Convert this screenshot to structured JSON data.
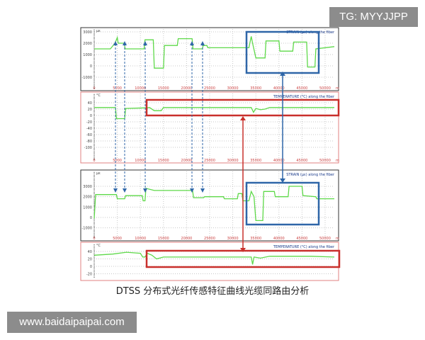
{
  "watermark_top": "TG: MYYJJPP",
  "watermark_bottom": "www.baidaipaipai.com",
  "caption": "DTSS 分布式光纤传感特征曲线光缆同路由分析",
  "colors": {
    "series": "#5fd94a",
    "strain_highlight": "#2f66a8",
    "temp_highlight": "#c9302c",
    "grid": "#c8c8c8"
  },
  "chart_data": [
    {
      "type": "line",
      "title": "STRAIN (µε) along the fiber",
      "ylabel": "µε",
      "xlabel": "m",
      "xlim": [
        0,
        52000
      ],
      "ylim": [
        -1300,
        3300
      ],
      "yticks": [
        3000,
        2000,
        1000,
        0,
        -1000
      ],
      "xticks": [
        0,
        5000,
        10000,
        15000,
        20000,
        25000,
        30000,
        35000,
        40000,
        45000,
        50000
      ],
      "grid": true,
      "x": [
        0,
        3500,
        4500,
        5000,
        5200,
        6500,
        6700,
        10800,
        11000,
        12800,
        13000,
        15000,
        15200,
        18000,
        18200,
        21200,
        21400,
        23400,
        23600,
        24400,
        24600,
        33500,
        34000,
        34300,
        35000,
        37000,
        37200,
        40000,
        40200,
        43000,
        43200,
        46000,
        46200,
        47800,
        48000,
        52000
      ],
      "y": [
        1500,
        1500,
        2000,
        2500,
        2000,
        2000,
        1500,
        1500,
        2300,
        2300,
        -200,
        -200,
        1800,
        1800,
        2400,
        2400,
        1500,
        1500,
        1800,
        1800,
        1600,
        1600,
        2600,
        2000,
        700,
        700,
        2200,
        2200,
        1300,
        1300,
        2100,
        2100,
        -100,
        -100,
        1500,
        1700
      ]
    },
    {
      "type": "line",
      "title": "TEMPERATURE (°C) along the fiber",
      "ylabel": "°C",
      "xlabel": "m",
      "xlim": [
        0,
        52000
      ],
      "ylim": [
        -105,
        50
      ],
      "yticks": [
        40,
        20,
        0,
        -20,
        -40,
        -60,
        -80,
        -100
      ],
      "xticks": [
        0,
        5000,
        10000,
        15000,
        20000,
        25000,
        30000,
        35000,
        40000,
        45000,
        50000
      ],
      "grid": true,
      "x": [
        0,
        4600,
        4800,
        6600,
        6800,
        11500,
        12000,
        13000,
        14500,
        15000,
        34000,
        34500,
        35000,
        36000,
        37000,
        38000,
        52000
      ],
      "y": [
        25,
        25,
        -10,
        -10,
        22,
        24,
        25,
        15,
        15,
        25,
        25,
        10,
        22,
        18,
        20,
        25,
        25
      ]
    },
    {
      "type": "line",
      "title": "STRAIN (µε) along the fiber",
      "ylabel": "µε",
      "xlabel": "m",
      "xlim": [
        0,
        52000
      ],
      "ylim": [
        -1300,
        3300
      ],
      "yticks": [
        3000,
        2000,
        1000,
        0,
        -1000
      ],
      "xticks": [
        0,
        5000,
        10000,
        15000,
        20000,
        25000,
        30000,
        35000,
        40000,
        45000,
        50000
      ],
      "grid": true,
      "x": [
        0,
        300,
        4800,
        5000,
        6600,
        6800,
        10400,
        10600,
        11000,
        11200,
        13000,
        21300,
        21500,
        23700,
        23900,
        28000,
        28200,
        31000,
        31200,
        32000,
        32200,
        33500,
        34000,
        34600,
        35000,
        36500,
        36700,
        39000,
        39200,
        42000,
        42200,
        45000,
        45200,
        48000,
        48200,
        52000
      ],
      "y": [
        -100,
        2200,
        2200,
        1800,
        1800,
        2100,
        2100,
        1600,
        1600,
        2800,
        2600,
        2600,
        1900,
        1900,
        2000,
        2000,
        1800,
        1800,
        2300,
        2300,
        1600,
        1600,
        2500,
        2000,
        -300,
        -300,
        2500,
        2500,
        2000,
        2000,
        3000,
        3000,
        2100,
        2000,
        1800,
        1800
      ]
    },
    {
      "type": "line",
      "title": "TEMPERATURE (°C) along the fiber",
      "ylabel": "°C",
      "xlabel": "m",
      "xlim": [
        0,
        52000
      ],
      "ylim": [
        -30,
        50
      ],
      "yticks": [
        40,
        20,
        0,
        -20
      ],
      "grid": true,
      "x": [
        0,
        4000,
        7000,
        10000,
        10500,
        11000,
        11500,
        12500,
        13500,
        15000,
        34000,
        34300,
        34600,
        36000,
        38000,
        47000,
        52000
      ],
      "y": [
        30,
        33,
        38,
        35,
        25,
        25,
        35,
        30,
        20,
        25,
        25,
        5,
        25,
        22,
        27,
        27,
        25
      ]
    }
  ]
}
